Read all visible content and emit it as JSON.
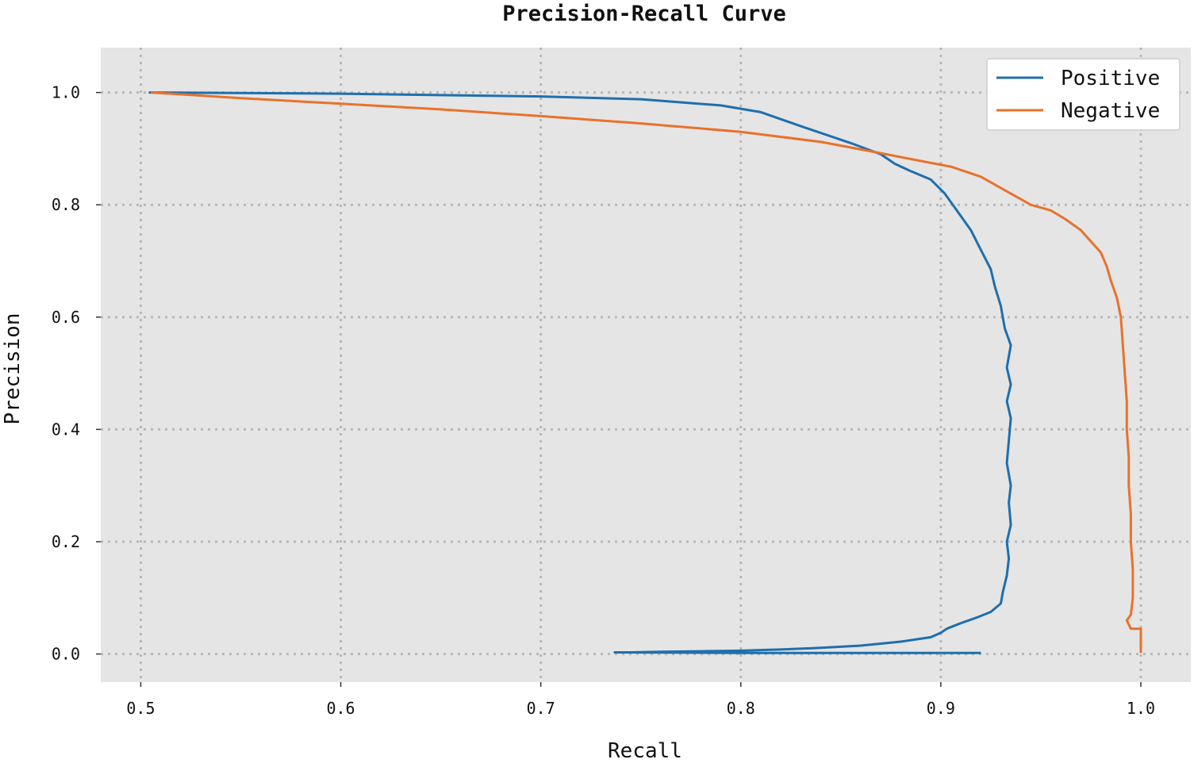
{
  "chart_data": {
    "type": "line",
    "title": "Precision-Recall Curve",
    "xlabel": "Recall",
    "ylabel": "Precision",
    "xlim": [
      0.48,
      1.025
    ],
    "ylim": [
      -0.05,
      1.08
    ],
    "xticks": [
      "0.5",
      "0.6",
      "0.7",
      "0.8",
      "0.9",
      "1.0"
    ],
    "yticks": [
      "0.0",
      "0.2",
      "0.4",
      "0.6",
      "0.8",
      "1.0"
    ],
    "grid": true,
    "legend_position": "top-right",
    "colors": {
      "plot_background": "#e5e5e5",
      "grid": "#b8b8b8"
    },
    "series": [
      {
        "name": "Positive",
        "color": "#1f6fad",
        "x": [
          0.504,
          0.6,
          0.7,
          0.75,
          0.79,
          0.81,
          0.83,
          0.855,
          0.87,
          0.877,
          0.885,
          0.895,
          0.902,
          0.908,
          0.915,
          0.92,
          0.925,
          0.927,
          0.93,
          0.932,
          0.935,
          0.933,
          0.935,
          0.933,
          0.935,
          0.934,
          0.933,
          0.935,
          0.934,
          0.935,
          0.933,
          0.934,
          0.933,
          0.931,
          0.93,
          0.925,
          0.918,
          0.91,
          0.903,
          0.9,
          0.895,
          0.88,
          0.86,
          0.84,
          0.82,
          0.8,
          0.78,
          0.76,
          0.745,
          0.737,
          0.8,
          0.92
        ],
        "y": [
          1.0,
          0.998,
          0.993,
          0.988,
          0.977,
          0.965,
          0.94,
          0.91,
          0.89,
          0.873,
          0.86,
          0.845,
          0.82,
          0.79,
          0.755,
          0.72,
          0.685,
          0.655,
          0.62,
          0.58,
          0.55,
          0.51,
          0.48,
          0.45,
          0.42,
          0.38,
          0.34,
          0.3,
          0.27,
          0.23,
          0.2,
          0.17,
          0.14,
          0.11,
          0.09,
          0.075,
          0.065,
          0.055,
          0.045,
          0.038,
          0.03,
          0.022,
          0.015,
          0.011,
          0.008,
          0.006,
          0.005,
          0.004,
          0.003,
          0.003,
          0.002,
          0.002
        ]
      },
      {
        "name": "Negative",
        "color": "#e8722c",
        "x": [
          0.505,
          0.55,
          0.6,
          0.65,
          0.7,
          0.75,
          0.8,
          0.84,
          0.87,
          0.89,
          0.905,
          0.92,
          0.935,
          0.945,
          0.955,
          0.962,
          0.97,
          0.975,
          0.98,
          0.983,
          0.985,
          0.988,
          0.99,
          0.991,
          0.992,
          0.993,
          0.993,
          0.994,
          0.994,
          0.995,
          0.995,
          0.996,
          0.996,
          0.995,
          0.993,
          0.995,
          0.998,
          1.0,
          1.0
        ],
        "y": [
          1.0,
          0.99,
          0.98,
          0.97,
          0.958,
          0.945,
          0.93,
          0.912,
          0.892,
          0.878,
          0.868,
          0.85,
          0.82,
          0.8,
          0.79,
          0.775,
          0.755,
          0.735,
          0.715,
          0.69,
          0.665,
          0.635,
          0.6,
          0.55,
          0.5,
          0.45,
          0.4,
          0.35,
          0.3,
          0.25,
          0.2,
          0.15,
          0.1,
          0.07,
          0.06,
          0.045,
          0.045,
          0.045,
          0.002
        ]
      }
    ]
  }
}
